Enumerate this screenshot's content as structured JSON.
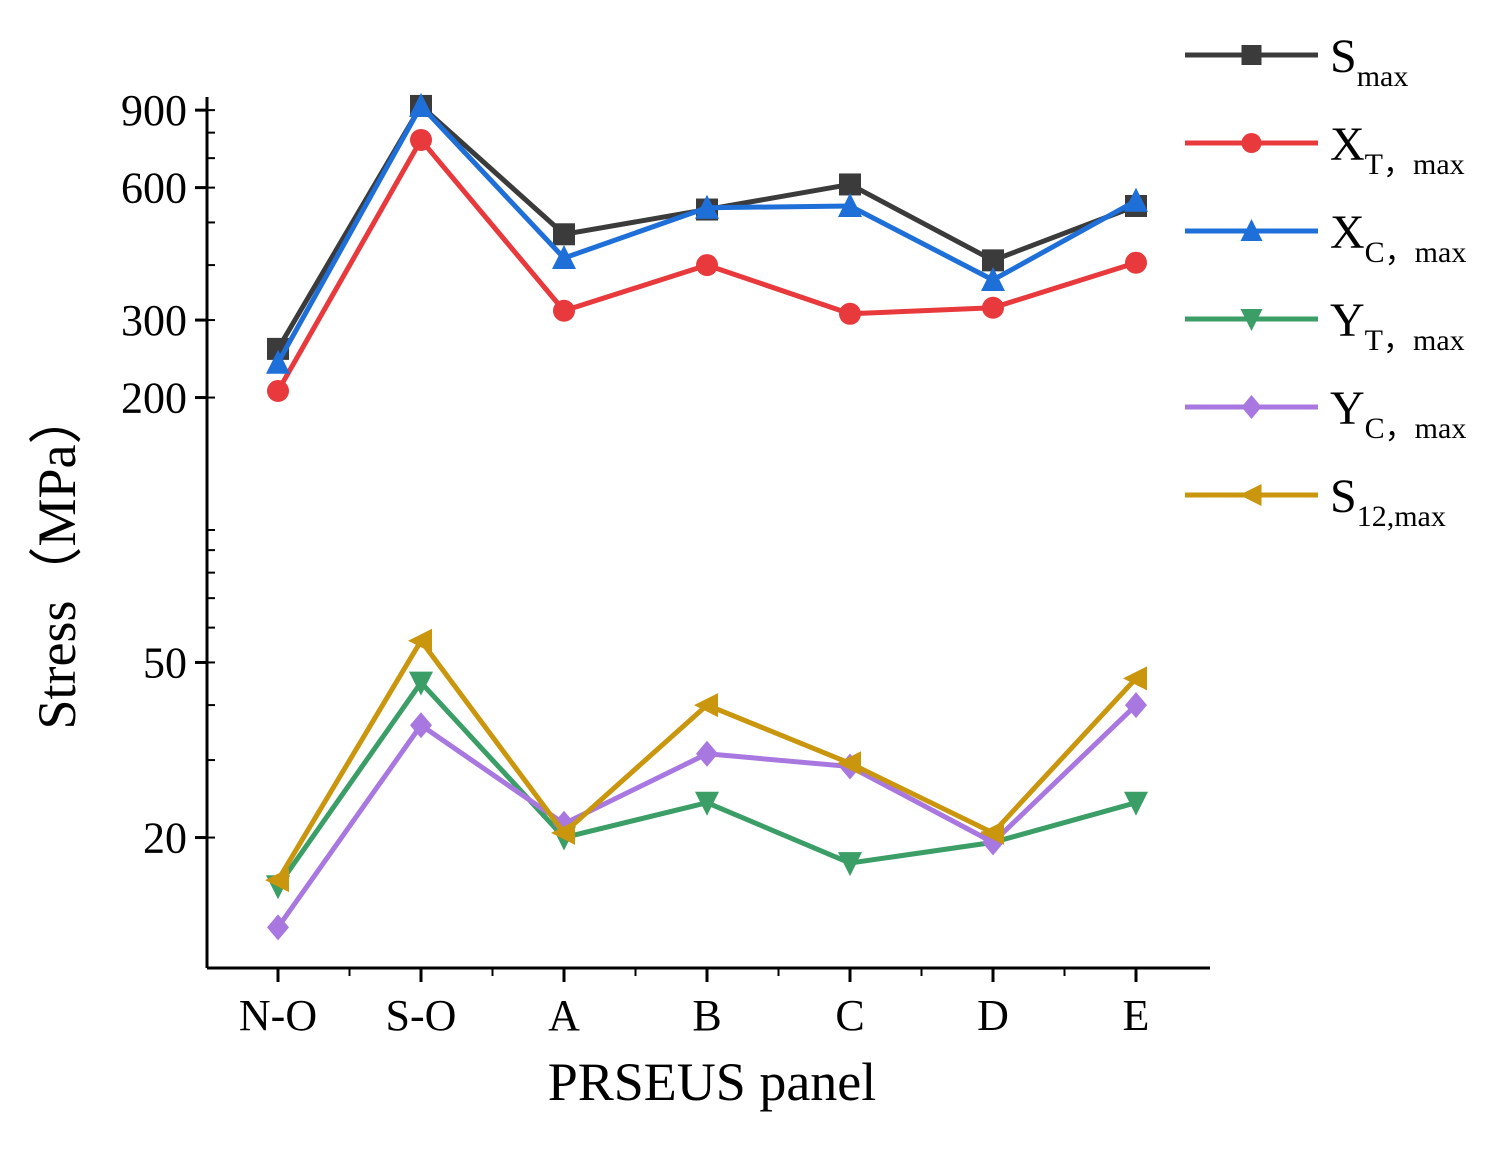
{
  "chart_data": {
    "type": "line",
    "xlabel": "PRSEUS panel",
    "ylabel": "Stress（MPa）",
    "yscale": "log",
    "categories": [
      "N-O",
      "S-O",
      "A",
      "B",
      "C",
      "D",
      "E"
    ],
    "yticks": [
      20,
      50,
      200,
      300,
      600,
      900
    ],
    "ytick_labels": [
      "20",
      "50",
      "200",
      "300",
      "600",
      "900"
    ],
    "legend_placement": "right",
    "grid": false,
    "series": [
      {
        "name": "S",
        "sub": "max",
        "color": "#3b3b3b",
        "marker": "square",
        "values": [
          258,
          920,
          470,
          535,
          610,
          410,
          545
        ]
      },
      {
        "name": "X",
        "sub": "T，max",
        "color": "#e8393c",
        "marker": "circle",
        "values": [
          207,
          770,
          315,
          400,
          310,
          320,
          405
        ]
      },
      {
        "name": "X",
        "sub": "C，max",
        "color": "#1f6fd8",
        "marker": "triangle-up",
        "values": [
          240,
          920,
          415,
          540,
          545,
          370,
          560
        ]
      },
      {
        "name": "Y",
        "sub": "T，max",
        "color": "#3a9e66",
        "marker": "triangle-down",
        "values": [
          15.5,
          45,
          20,
          24,
          17.5,
          19.5,
          24
        ]
      },
      {
        "name": "Y",
        "sub": "C，max",
        "color": "#a877e0",
        "marker": "diamond",
        "values": [
          12.5,
          36,
          21.5,
          31,
          29,
          19.5,
          40
        ]
      },
      {
        "name": "S",
        "sub": "12,max",
        "color": "#c9960e",
        "marker": "triangle-left",
        "values": [
          16,
          56,
          20.5,
          40,
          29.5,
          20.5,
          46
        ]
      }
    ]
  }
}
